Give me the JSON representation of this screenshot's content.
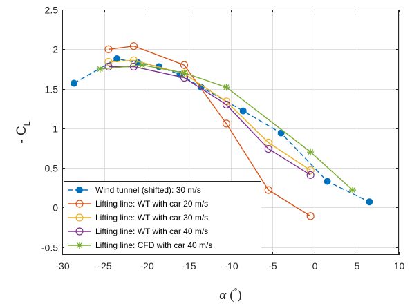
{
  "chart_data": {
    "type": "line",
    "xlabel_symbol": "α",
    "xlabel_unit_open": "(",
    "xlabel_unit_deg": "°",
    "xlabel_unit_close": ")",
    "ylabel": "- C",
    "ylabel_sub": "L",
    "xlim": [
      -30,
      10
    ],
    "ylim": [
      -0.6,
      2.5
    ],
    "xticks": [
      -30,
      -25,
      -20,
      -15,
      -10,
      -5,
      0,
      5,
      10
    ],
    "yticks": [
      -0.5,
      0,
      0.5,
      1,
      1.5,
      2,
      2.5
    ],
    "xtick_labels": [
      "-30",
      "-25",
      "-20",
      "-15",
      "-10",
      "-5",
      "0",
      "5",
      "10"
    ],
    "ytick_labels": [
      "-0.5",
      "0",
      "0.5",
      "1",
      "1.5",
      "2",
      "2.5"
    ],
    "grid": true,
    "legend_position": "bottom-left",
    "series": [
      {
        "name": "Wind tunnel (shifted): 30 m/s",
        "color": "#0072BD",
        "style": "dashed",
        "marker": "filled-circle",
        "x": [
          -28.6,
          -23.5,
          -21,
          -18.5,
          -16,
          -13.5,
          -8.5,
          -4,
          1.5,
          6.5
        ],
        "y": [
          1.57,
          1.88,
          1.83,
          1.78,
          1.68,
          1.52,
          1.22,
          0.94,
          0.33,
          0.07
        ]
      },
      {
        "name": "Lifting line: WT with car 20 m/s",
        "color": "#D95319",
        "style": "solid",
        "marker": "open-circle",
        "x": [
          -24.5,
          -21.5,
          -15.5,
          -10.5,
          -5.5,
          -0.5
        ],
        "y": [
          2.0,
          2.04,
          1.8,
          1.06,
          0.22,
          -0.11
        ]
      },
      {
        "name": "Lifting line: WT with car 30 m/s",
        "color": "#EDB120",
        "style": "solid",
        "marker": "open-circle",
        "x": [
          -24.5,
          -21.5,
          -15.5,
          -10.5,
          -5.5,
          -0.5
        ],
        "y": [
          1.84,
          1.86,
          1.69,
          1.34,
          0.82,
          0.47
        ]
      },
      {
        "name": "Lifting line: WT with car 40 m/s",
        "color": "#7E2F8E",
        "style": "solid",
        "marker": "open-circle",
        "x": [
          -24.5,
          -21.5,
          -15.5,
          -10.5,
          -5.5,
          -0.5
        ],
        "y": [
          1.78,
          1.78,
          1.64,
          1.3,
          0.74,
          0.41
        ]
      },
      {
        "name": "Lifting line: CFD with car 40 m/s",
        "color": "#77AC30",
        "style": "solid",
        "marker": "asterisk",
        "x": [
          -25.5,
          -20.5,
          -15.5,
          -10.5,
          -0.5,
          4.5
        ],
        "y": [
          1.75,
          1.8,
          1.7,
          1.52,
          0.7,
          0.22
        ]
      }
    ]
  }
}
